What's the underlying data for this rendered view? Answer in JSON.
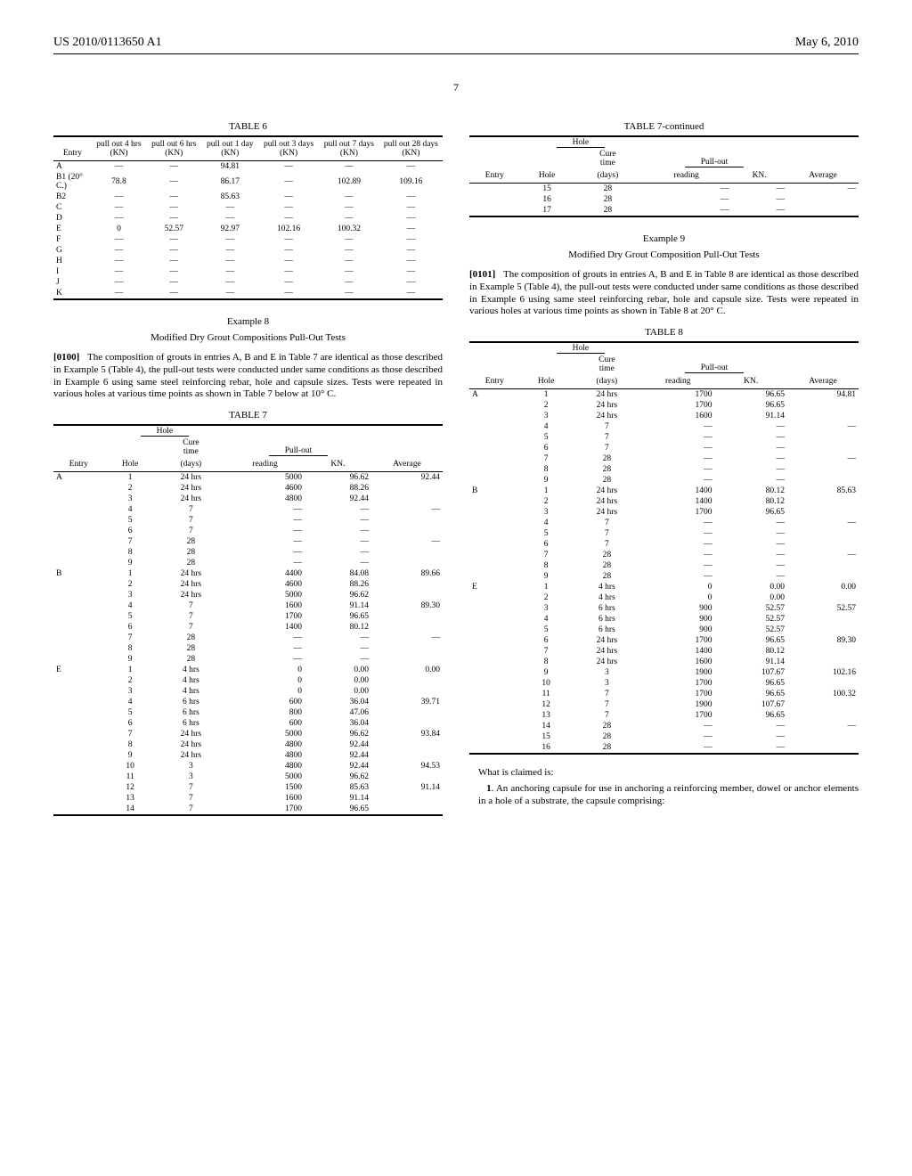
{
  "header": {
    "left": "US 2010/0113650 A1",
    "right": "May 6, 2010"
  },
  "page_number": "7",
  "table6": {
    "caption": "TABLE 6",
    "columns": [
      "Entry",
      "pull out 4 hrs (KN)",
      "pull out 6 hrs (KN)",
      "pull out 1 day (KN)",
      "pull out 3 days (KN)",
      "pull out 7 days (KN)",
      "pull out 28 days (KN)"
    ],
    "rows": [
      [
        "A",
        "—",
        "—",
        "94.81",
        "—",
        "—",
        "—"
      ],
      [
        "B1 (20° C.)",
        "78.8",
        "—",
        "86.17",
        "—",
        "102.89",
        "109.16"
      ],
      [
        "B2",
        "—",
        "—",
        "85.63",
        "—",
        "—",
        "—"
      ],
      [
        "C",
        "—",
        "—",
        "—",
        "—",
        "—",
        "—"
      ],
      [
        "D",
        "—",
        "—",
        "—",
        "—",
        "—",
        "—"
      ],
      [
        "E",
        "0",
        "52.57",
        "92.97",
        "102.16",
        "100.32",
        "—"
      ],
      [
        "F",
        "—",
        "—",
        "—",
        "—",
        "—",
        "—"
      ],
      [
        "G",
        "—",
        "—",
        "—",
        "—",
        "—",
        "—"
      ],
      [
        "H",
        "—",
        "—",
        "—",
        "—",
        "—",
        "—"
      ],
      [
        "I",
        "—",
        "—",
        "—",
        "—",
        "—",
        "—"
      ],
      [
        "J",
        "—",
        "—",
        "—",
        "—",
        "—",
        "—"
      ],
      [
        "K",
        "—",
        "—",
        "—",
        "—",
        "—",
        "—"
      ]
    ]
  },
  "example8": {
    "title": "Example 8",
    "subtitle": "Modified Dry Grout Compositions Pull-Out Tests",
    "para_num": "[0100]",
    "para": "The composition of grouts in entries A, B and E in Table 7 are identical as those described in Example 5 (Table 4), the pull-out tests were conducted under same conditions as those described in Example 6 using same steel reinforcing rebar, hole and capsule sizes. Tests were repeated in various holes at various time points as shown in Table 7 below at 10° C."
  },
  "table7": {
    "caption": "TABLE 7",
    "group_hole": "Hole",
    "group_pullout": "Pull-out",
    "columns": [
      "Entry",
      "Hole",
      "Cure time (days)",
      "reading",
      "KN.",
      "Average"
    ],
    "rows": [
      [
        "A",
        "1",
        "24 hrs",
        "5000",
        "96.62",
        "92.44"
      ],
      [
        "",
        "2",
        "24 hrs",
        "4600",
        "88.26",
        ""
      ],
      [
        "",
        "3",
        "24 hrs",
        "4800",
        "92.44",
        ""
      ],
      [
        "",
        "4",
        "7",
        "—",
        "—",
        "—"
      ],
      [
        "",
        "5",
        "7",
        "—",
        "—",
        ""
      ],
      [
        "",
        "6",
        "7",
        "—",
        "—",
        ""
      ],
      [
        "",
        "7",
        "28",
        "—",
        "—",
        "—"
      ],
      [
        "",
        "8",
        "28",
        "—",
        "—",
        ""
      ],
      [
        "",
        "9",
        "28",
        "—",
        "—",
        ""
      ],
      [
        "B",
        "1",
        "24 hrs",
        "4400",
        "84.08",
        "89.66"
      ],
      [
        "",
        "2",
        "24 hrs",
        "4600",
        "88.26",
        ""
      ],
      [
        "",
        "3",
        "24 hrs",
        "5000",
        "96.62",
        ""
      ],
      [
        "",
        "4",
        "7",
        "1600",
        "91.14",
        "89.30"
      ],
      [
        "",
        "5",
        "7",
        "1700",
        "96.65",
        ""
      ],
      [
        "",
        "6",
        "7",
        "1400",
        "80.12",
        ""
      ],
      [
        "",
        "7",
        "28",
        "—",
        "—",
        "—"
      ],
      [
        "",
        "8",
        "28",
        "—",
        "—",
        ""
      ],
      [
        "",
        "9",
        "28",
        "—",
        "—",
        ""
      ],
      [
        "E",
        "1",
        "4 hrs",
        "0",
        "0.00",
        "0.00"
      ],
      [
        "",
        "2",
        "4 hrs",
        "0",
        "0.00",
        ""
      ],
      [
        "",
        "3",
        "4 hrs",
        "0",
        "0.00",
        ""
      ],
      [
        "",
        "4",
        "6 hrs",
        "600",
        "36.04",
        "39.71"
      ],
      [
        "",
        "5",
        "6 hrs",
        "800",
        "47.06",
        ""
      ],
      [
        "",
        "6",
        "6 hrs",
        "600",
        "36.04",
        ""
      ],
      [
        "",
        "7",
        "24 hrs",
        "5000",
        "96.62",
        "93.84"
      ],
      [
        "",
        "8",
        "24 hrs",
        "4800",
        "92.44",
        ""
      ],
      [
        "",
        "9",
        "24 hrs",
        "4800",
        "92.44",
        ""
      ],
      [
        "",
        "10",
        "3",
        "4800",
        "92.44",
        "94.53"
      ],
      [
        "",
        "11",
        "3",
        "5000",
        "96.62",
        ""
      ],
      [
        "",
        "12",
        "7",
        "1500",
        "85.63",
        "91.14"
      ],
      [
        "",
        "13",
        "7",
        "1600",
        "91.14",
        ""
      ],
      [
        "",
        "14",
        "7",
        "1700",
        "96.65",
        ""
      ]
    ]
  },
  "table7cont": {
    "caption": "TABLE 7-continued",
    "group_hole": "Hole",
    "group_pullout": "Pull-out",
    "columns": [
      "Entry",
      "Hole",
      "Cure time (days)",
      "reading",
      "KN.",
      "Average"
    ],
    "rows": [
      [
        "",
        "15",
        "28",
        "—",
        "—",
        "—"
      ],
      [
        "",
        "16",
        "28",
        "—",
        "—",
        ""
      ],
      [
        "",
        "17",
        "28",
        "—",
        "—",
        ""
      ]
    ]
  },
  "example9": {
    "title": "Example 9",
    "subtitle": "Modified Dry Grout Composition Pull-Out Tests",
    "para_num": "[0101]",
    "para": "The composition of grouts in entries A, B and E in Table 8 are identical as those described in Example 5 (Table 4), the pull-out tests were conducted under same conditions as those described in Example 6 using same steel reinforcing rebar, hole and capsule size. Tests were repeated in various holes at various time points as shown in Table 8 at 20° C."
  },
  "table8": {
    "caption": "TABLE 8",
    "group_hole": "Hole",
    "group_pullout": "Pull-out",
    "columns": [
      "Entry",
      "Hole",
      "Cure time (days)",
      "reading",
      "KN.",
      "Average"
    ],
    "rows": [
      [
        "A",
        "1",
        "24 hrs",
        "1700",
        "96.65",
        "94.81"
      ],
      [
        "",
        "2",
        "24 hrs",
        "1700",
        "96.65",
        ""
      ],
      [
        "",
        "3",
        "24 hrs",
        "1600",
        "91.14",
        ""
      ],
      [
        "",
        "4",
        "7",
        "—",
        "—",
        "—"
      ],
      [
        "",
        "5",
        "7",
        "—",
        "—",
        ""
      ],
      [
        "",
        "6",
        "7",
        "—",
        "—",
        ""
      ],
      [
        "",
        "7",
        "28",
        "—",
        "—",
        "—"
      ],
      [
        "",
        "8",
        "28",
        "—",
        "—",
        ""
      ],
      [
        "",
        "9",
        "28",
        "—",
        "—",
        ""
      ],
      [
        "B",
        "1",
        "24 hrs",
        "1400",
        "80.12",
        "85.63"
      ],
      [
        "",
        "2",
        "24 hrs",
        "1400",
        "80.12",
        ""
      ],
      [
        "",
        "3",
        "24 hrs",
        "1700",
        "96.65",
        ""
      ],
      [
        "",
        "4",
        "7",
        "—",
        "—",
        "—"
      ],
      [
        "",
        "5",
        "7",
        "—",
        "—",
        ""
      ],
      [
        "",
        "6",
        "7",
        "—",
        "—",
        ""
      ],
      [
        "",
        "7",
        "28",
        "—",
        "—",
        "—"
      ],
      [
        "",
        "8",
        "28",
        "—",
        "—",
        ""
      ],
      [
        "",
        "9",
        "28",
        "—",
        "—",
        ""
      ],
      [
        "E",
        "1",
        "4 hrs",
        "0",
        "0.00",
        "0.00"
      ],
      [
        "",
        "2",
        "4 hrs",
        "0",
        "0.00",
        ""
      ],
      [
        "",
        "3",
        "6 hrs",
        "900",
        "52.57",
        "52.57"
      ],
      [
        "",
        "4",
        "6 hrs",
        "900",
        "52.57",
        ""
      ],
      [
        "",
        "5",
        "6 hrs",
        "900",
        "52.57",
        ""
      ],
      [
        "",
        "6",
        "24 hrs",
        "1700",
        "96.65",
        "89.30"
      ],
      [
        "",
        "7",
        "24 hrs",
        "1400",
        "80.12",
        ""
      ],
      [
        "",
        "8",
        "24 hrs",
        "1600",
        "91.14",
        ""
      ],
      [
        "",
        "9",
        "3",
        "1900",
        "107.67",
        "102.16"
      ],
      [
        "",
        "10",
        "3",
        "1700",
        "96.65",
        ""
      ],
      [
        "",
        "11",
        "7",
        "1700",
        "96.65",
        "100.32"
      ],
      [
        "",
        "12",
        "7",
        "1900",
        "107.67",
        ""
      ],
      [
        "",
        "13",
        "7",
        "1700",
        "96.65",
        ""
      ],
      [
        "",
        "14",
        "28",
        "—",
        "—",
        "—"
      ],
      [
        "",
        "15",
        "28",
        "—",
        "—",
        ""
      ],
      [
        "",
        "16",
        "28",
        "—",
        "—",
        ""
      ]
    ]
  },
  "claims": {
    "intro": "What is claimed is:",
    "claim1_num": "1",
    "claim1": ". An anchoring capsule for use in anchoring a reinforcing member, dowel or anchor elements in a hole of a substrate, the capsule comprising:"
  }
}
